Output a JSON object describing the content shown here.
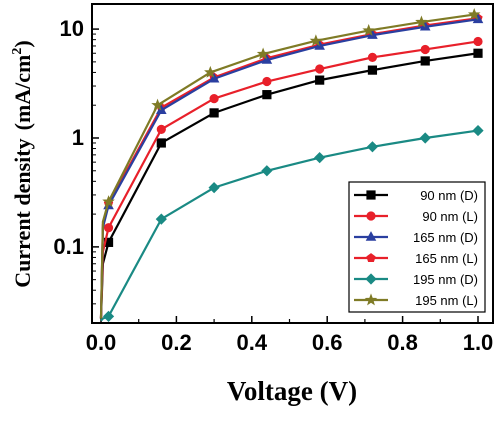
{
  "chart_data": {
    "type": "line",
    "xlabel": "Voltage (V)",
    "ylabel_main": "Current density",
    "ylabel_unit": "(mA/cm",
    "ylabel_sup": "2",
    "ylabel_close": ")",
    "x_scale": "linear",
    "y_scale": "log",
    "xlim": [
      0.0,
      1.0
    ],
    "ylim": [
      0.02,
      17
    ],
    "x_ticks": [
      0.0,
      0.2,
      0.4,
      0.6,
      0.8,
      1.0
    ],
    "x_tick_labels": [
      "0.0",
      "0.2",
      "0.4",
      "0.6",
      "0.8",
      "1.0"
    ],
    "y_ticks": [
      0.1,
      1,
      10
    ],
    "y_tick_labels": [
      "0.1",
      "1",
      "10"
    ],
    "grid": false,
    "legend_position": "bottom-right",
    "series": [
      {
        "name": "90 nm (D)",
        "color": "#000000",
        "marker": "square",
        "x": [
          0.0,
          0.005,
          0.02,
          0.16,
          0.3,
          0.44,
          0.58,
          0.72,
          0.86,
          1.0
        ],
        "y": [
          0.022,
          0.07,
          0.11,
          0.9,
          1.7,
          2.5,
          3.4,
          4.2,
          5.1,
          6.0
        ]
      },
      {
        "name": "90 nm (L)",
        "color": "#e8202a",
        "marker": "circle",
        "x": [
          0.0,
          0.005,
          0.02,
          0.16,
          0.3,
          0.44,
          0.58,
          0.72,
          0.86,
          1.0
        ],
        "y": [
          0.022,
          0.09,
          0.15,
          1.2,
          2.3,
          3.3,
          4.3,
          5.5,
          6.5,
          7.7
        ]
      },
      {
        "name": "165 nm (D)",
        "color": "#2a3fa0",
        "marker": "triangle",
        "x": [
          0.0,
          0.005,
          0.02,
          0.16,
          0.3,
          0.44,
          0.58,
          0.72,
          0.86,
          1.0
        ],
        "y": [
          0.022,
          0.15,
          0.24,
          1.8,
          3.5,
          5.2,
          7.0,
          8.8,
          10.5,
          12.3
        ]
      },
      {
        "name": "165 nm (L)",
        "color": "#e8202a",
        "marker": "pentagon",
        "x": [
          0.0,
          0.005,
          0.02,
          0.16,
          0.3,
          0.44,
          0.58,
          0.72,
          0.86,
          1.0
        ],
        "y": [
          0.022,
          0.16,
          0.25,
          1.9,
          3.6,
          5.4,
          7.2,
          9.0,
          10.8,
          12.6
        ]
      },
      {
        "name": "195 nm (D)",
        "color": "#1a8a84",
        "marker": "diamond",
        "x": [
          0.0,
          0.005,
          0.02,
          0.16,
          0.3,
          0.44,
          0.58,
          0.72,
          0.86,
          1.0
        ],
        "y": [
          0.021,
          0.022,
          0.023,
          0.18,
          0.35,
          0.5,
          0.66,
          0.83,
          1.0,
          1.17
        ]
      },
      {
        "name": "195 nm (L)",
        "color": "#7f7b26",
        "marker": "star",
        "x": [
          0.0,
          0.005,
          0.02,
          0.15,
          0.29,
          0.43,
          0.57,
          0.71,
          0.85,
          0.99
        ],
        "y": [
          0.022,
          0.17,
          0.26,
          2.0,
          4.0,
          5.9,
          7.8,
          9.7,
          11.6,
          13.6
        ]
      }
    ]
  }
}
